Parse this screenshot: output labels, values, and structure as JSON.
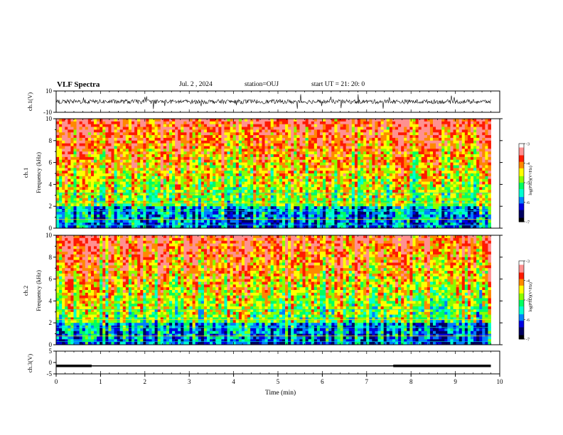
{
  "header": {
    "title": "VLF Spectra",
    "date": "Jul. 2 , 2024",
    "station": "station=OUJ",
    "start": "start UT =  21: 20: 0"
  },
  "panels": {
    "ch1_wave": {
      "ylabel": "ch.1(V)",
      "ticks": [
        "10",
        "-10"
      ]
    },
    "ch1_spec": {
      "ylabel_top": "ch.1",
      "ylabel_bottom": "Frequency (kHz)",
      "ticks": [
        "10",
        "8",
        "6",
        "4",
        "2",
        "0"
      ]
    },
    "ch2_spec": {
      "ylabel_top": "ch.2",
      "ylabel_bottom": "Frequency (kHz)",
      "ticks": [
        "10",
        "8",
        "6",
        "4",
        "2",
        "0"
      ]
    },
    "ch3_wave": {
      "ylabel": "ch.3(V)",
      "ticks": [
        "5",
        "0",
        "-5"
      ]
    }
  },
  "colorbar": {
    "label": "log(PSD)(V²/Hz)",
    "ticks": [
      "-3",
      "-4",
      "-5",
      "-6",
      "-7"
    ],
    "colors": [
      "#ffffff",
      "#ff9090",
      "#ff1a00",
      "#ff8800",
      "#ffff00",
      "#88ff00",
      "#00ff60",
      "#00ffd0",
      "#0080ff",
      "#0000e0",
      "#000060",
      "#000000"
    ]
  },
  "xaxis": {
    "label": "Time (min)",
    "ticks": [
      "0",
      "1",
      "2",
      "3",
      "4",
      "5",
      "6",
      "7",
      "8",
      "9",
      "10"
    ]
  },
  "chart_data": [
    {
      "type": "line",
      "name": "ch.1 waveform",
      "ylabel": "ch.1(V)",
      "xlim": [
        0,
        10
      ],
      "ylim": [
        -10,
        10
      ],
      "note_values": {
        "baseline": 0,
        "typical_amplitude": 2
      }
    },
    {
      "type": "heatmap",
      "name": "ch.1 spectrogram",
      "xlabel": "Time (min)",
      "ylabel": "Frequency (kHz)",
      "xlim": [
        0,
        10
      ],
      "ylim": [
        0,
        10
      ],
      "data_end_min": 9.8,
      "zlim": [
        -7,
        -3
      ],
      "zlabel": "log(PSD)(V²/Hz)"
    },
    {
      "type": "heatmap",
      "name": "ch.2 spectrogram",
      "xlabel": "Time (min)",
      "ylabel": "Frequency (kHz)",
      "xlim": [
        0,
        10
      ],
      "ylim": [
        0,
        10
      ],
      "data_end_min": 9.8,
      "zlim": [
        -7,
        -3
      ],
      "zlabel": "log(PSD)(V²/Hz)"
    },
    {
      "type": "line",
      "name": "ch.3 level",
      "ylabel": "ch.3(V)",
      "xlim": [
        0,
        10
      ],
      "ylim": [
        -5,
        5
      ],
      "level": -1.5,
      "thick_segments_min": [
        [
          0,
          0.8
        ],
        [
          7.6,
          9.8
        ]
      ]
    }
  ]
}
